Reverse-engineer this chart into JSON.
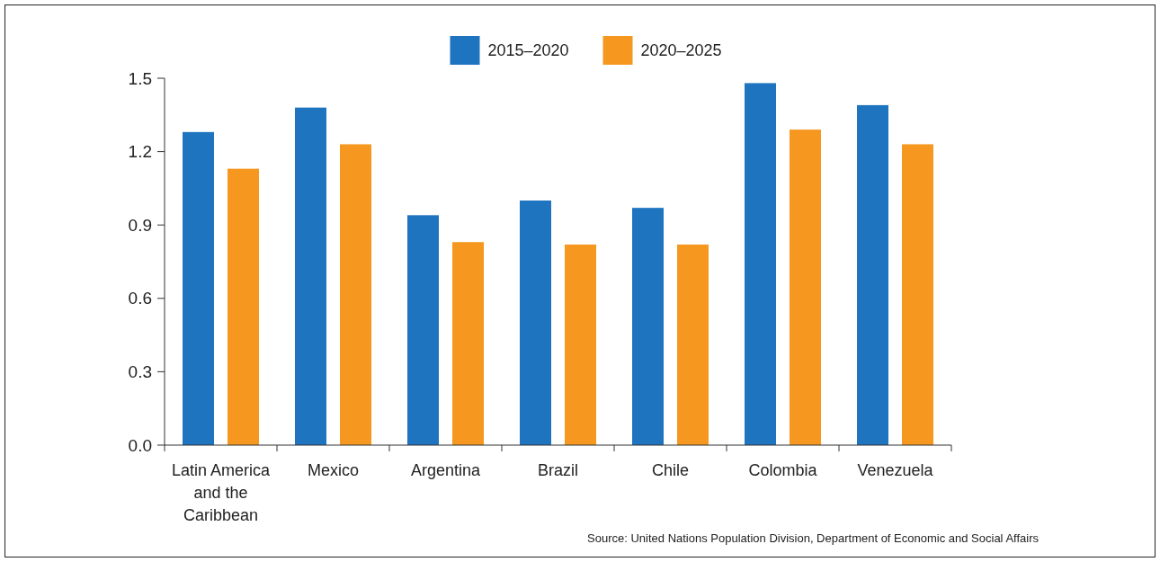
{
  "chart_data": {
    "type": "bar",
    "categories": [
      "Latin America and the Caribbean",
      "Mexico",
      "Argentina",
      "Brazil",
      "Chile",
      "Colombia",
      "Venezuela"
    ],
    "series": [
      {
        "name": "2015–2020",
        "color": "#1f74bf",
        "values": [
          1.28,
          1.38,
          0.94,
          1.0,
          0.97,
          1.48,
          1.39
        ]
      },
      {
        "name": "2020–2025",
        "color": "#f6971f",
        "values": [
          1.13,
          1.23,
          0.83,
          0.82,
          0.82,
          1.29,
          1.23
        ]
      }
    ],
    "ylim": [
      0,
      1.5
    ],
    "yticks": [
      {
        "value": 0,
        "label": "0.0"
      },
      {
        "value": 0.3,
        "label": "0.3"
      },
      {
        "value": 0.6,
        "label": "0.6"
      },
      {
        "value": 0.9,
        "label": "0.9"
      },
      {
        "value": 1.2,
        "label": "1.2"
      },
      {
        "value": 1.5,
        "label": "1.5"
      }
    ],
    "grid": false,
    "legend": "top",
    "annotations": [
      "Source: United Nations Population Division, Department of Economic and Social Affairs"
    ]
  }
}
